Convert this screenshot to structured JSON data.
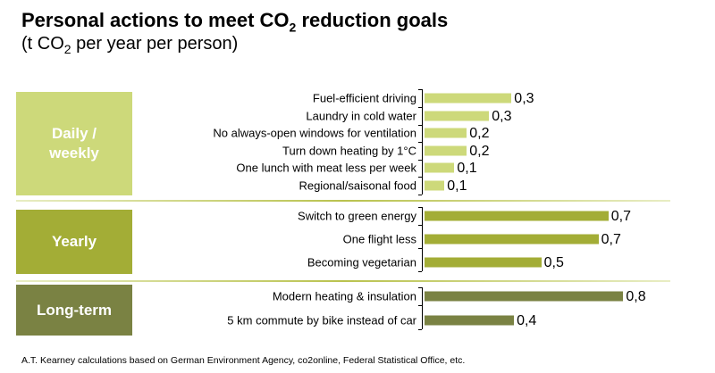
{
  "chart_data": {
    "type": "bar",
    "orientation": "horizontal",
    "title": "Personal actions to meet CO2 reduction goals",
    "subtitle": "(t CO2 per year per person)",
    "xlim": [
      0,
      1
    ],
    "grid": false,
    "groups": [
      {
        "name": "Daily / weekly",
        "color": "#cdd97a",
        "categories": [
          "Fuel-efficient driving",
          "Laundry in cold water",
          "No always-open windows for ventilation",
          "Turn down heating by 1°C",
          "One lunch with meat less per week",
          "Regional/saisonal food"
        ],
        "values": [
          0.35,
          0.26,
          0.17,
          0.17,
          0.12,
          0.08
        ],
        "labels": [
          "0,3",
          "0,3",
          "0,2",
          "0,2",
          "0,1",
          "0,1"
        ]
      },
      {
        "name": "Yearly",
        "color": "#a3ad36",
        "categories": [
          "Switch to green energy",
          "One flight less",
          "Becoming vegetarian"
        ],
        "values": [
          0.74,
          0.7,
          0.47
        ],
        "labels": [
          "0,7",
          "0,7",
          "0,5"
        ]
      },
      {
        "name": "Long-term",
        "color": "#7a8243",
        "categories": [
          "Modern heating & insulation",
          "5 km commute by bike instead of car"
        ],
        "values": [
          0.8,
          0.36
        ],
        "labels": [
          "0,8",
          "0,4"
        ]
      }
    ],
    "footnote": "A.T. Kearney calculations based on German Environment Agency, co2online, Federal Statistical Office, etc."
  }
}
